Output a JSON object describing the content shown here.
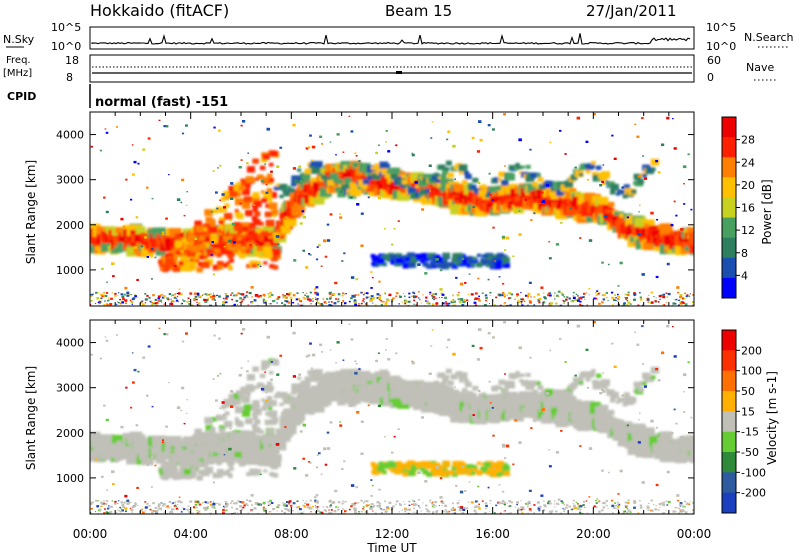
{
  "header": {
    "radar": "Hokkaido (fitACF)",
    "beam": "Beam 15",
    "date": "27/Jan/2011"
  },
  "top_panels": {
    "nsky_label": "N.Sky",
    "nsky_ticks": [
      "10^5",
      "10^0"
    ],
    "nsearch_label": "N.Search",
    "nsearch_ticks": [
      "10^5",
      "10^0"
    ],
    "freq_label_1": "Freq.",
    "freq_label_2": "[MHz]",
    "freq_ticks": [
      "18",
      "8"
    ],
    "nave_label": "Nave",
    "nave_ticks": [
      "60",
      "0"
    ],
    "cpid_label": "CPID",
    "cpid_text": "normal (fast) -151"
  },
  "chart_data": [
    {
      "type": "heatmap",
      "title": "",
      "xlabel": "Time UT",
      "ylabel": "Slant Range [km]",
      "xlim": [
        "00:00",
        "24:00"
      ],
      "ylim": [
        200,
        4500
      ],
      "x_ticks": [
        "00:00",
        "04:00",
        "08:00",
        "12:00",
        "16:00",
        "20:00",
        "00:00"
      ],
      "y_ticks": [
        1000,
        2000,
        3000,
        4000
      ],
      "colorbar": {
        "label": "Power [dB]",
        "range": [
          0,
          32
        ],
        "ticks": [
          4,
          8,
          12,
          16,
          20,
          24,
          28
        ],
        "colors": [
          "#0000ff",
          "#1a4fb0",
          "#2e7f60",
          "#48a060",
          "#c8d020",
          "#ffc000",
          "#ff8000",
          "#ff2000",
          "#ee0000"
        ]
      }
    },
    {
      "type": "heatmap",
      "title": "",
      "xlabel": "Time UT",
      "ylabel": "Slant Range [km]",
      "xlim": [
        "00:00",
        "24:00"
      ],
      "ylim": [
        200,
        4500
      ],
      "x_ticks": [
        "00:00",
        "04:00",
        "08:00",
        "12:00",
        "16:00",
        "20:00",
        "00:00"
      ],
      "y_ticks": [
        1000,
        2000,
        3000,
        4000
      ],
      "colorbar": {
        "label": "Velocity [m s-1]",
        "ticks": [
          200,
          100,
          50,
          15,
          -15,
          -50,
          -100,
          -200
        ],
        "colors": [
          "#1c3fc0",
          "#2e5aa0",
          "#2e8a3a",
          "#66cc33",
          "#c0c0b8",
          "#ffb000",
          "#ff7000",
          "#ff3000",
          "#ee0000"
        ]
      }
    }
  ]
}
